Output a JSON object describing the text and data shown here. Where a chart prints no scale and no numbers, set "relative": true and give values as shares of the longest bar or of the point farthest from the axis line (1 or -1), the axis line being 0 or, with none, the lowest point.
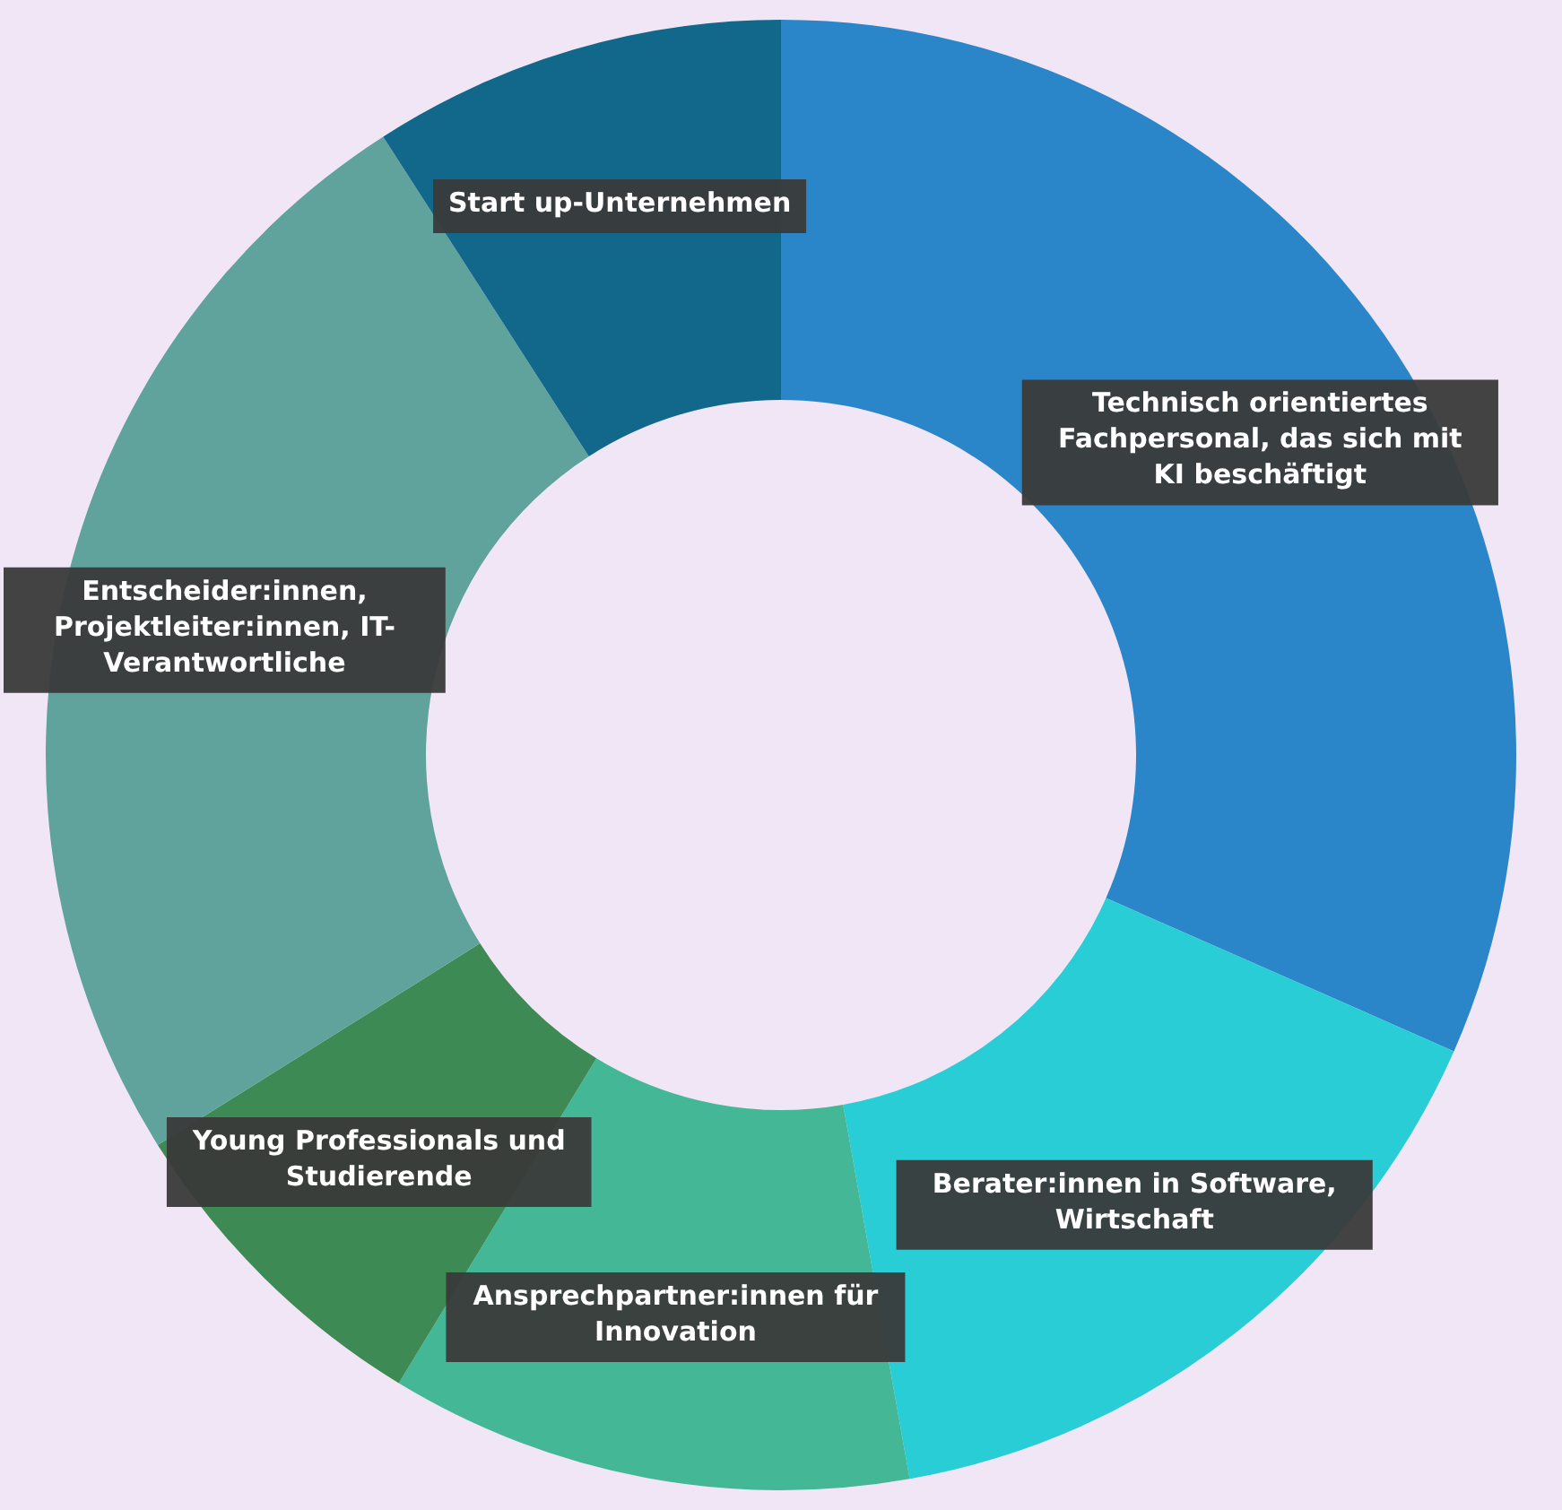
{
  "chart_data": {
    "type": "donut",
    "relative": true,
    "categories": [
      "Technisch orientiertes Fachpersonal, das sich mit KI beschäftigt",
      "Berater:innen in Software, Wirtschaft",
      "Ansprechpartner:innen für Innovation",
      "Young Professionals und Studierende",
      "Entscheider:innen, Projektleiter:innen, IT-Verantwortliche",
      "Start up-Unternehmen"
    ],
    "values": [
      31.6,
      15.6,
      11.5,
      7.4,
      24.8,
      9.1
    ],
    "colors": [
      "#2a86c8",
      "#29cdd6",
      "#44b896",
      "#3e8a55",
      "#5fa39c",
      "#11688a"
    ]
  }
}
